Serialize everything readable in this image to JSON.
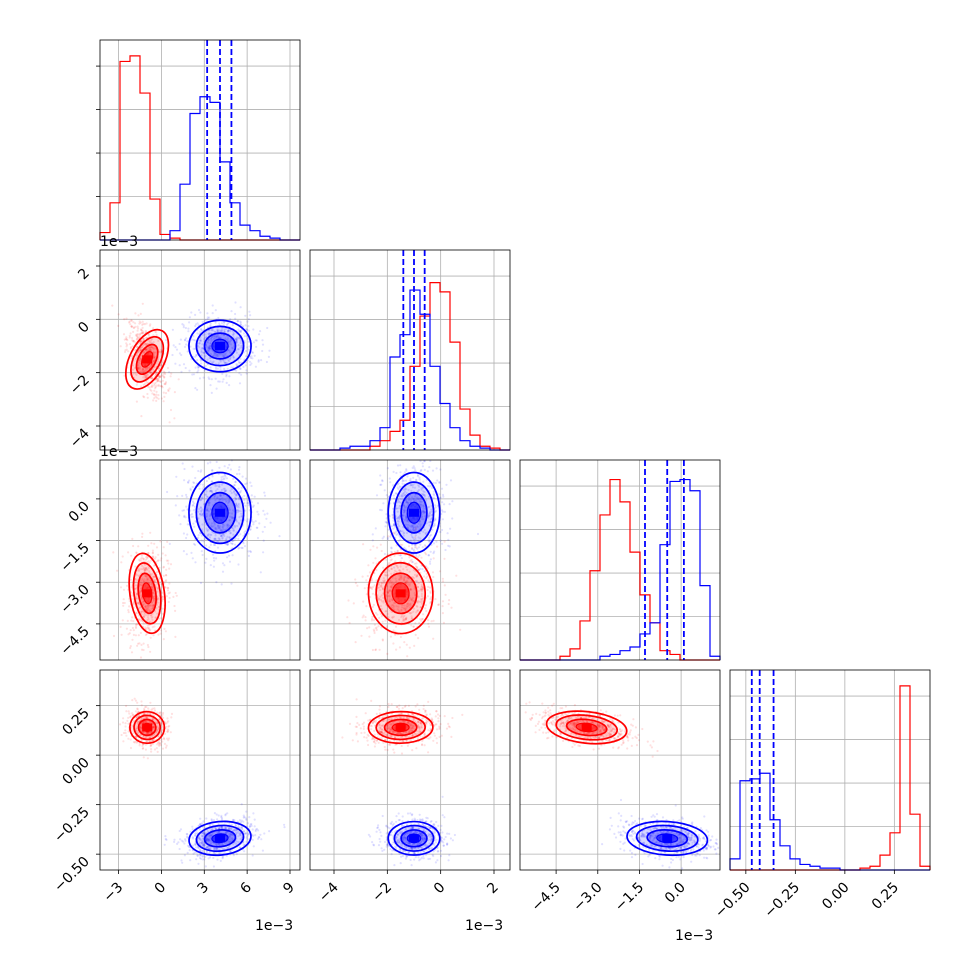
{
  "chart_data": {
    "type": "corner",
    "colors": {
      "series_a": "#ff0000",
      "series_b": "#0000ff",
      "grid": "#b0b0b0"
    },
    "series": [
      {
        "color": "#ff0000",
        "params": [
          {
            "center": -0.001,
            "sd": 0.0005
          },
          {
            "center": -0.0015,
            "sd": 0.0005
          },
          {
            "center": -0.0034,
            "sd": 0.0006
          },
          {
            "center": 0.14,
            "sd": 0.033
          }
        ],
        "hist": [
          [
            0.04,
            0.2,
            0.96,
            0.99,
            0.79,
            0.22,
            0.03,
            0.01,
            0,
            0,
            0,
            0,
            0,
            0,
            0,
            0,
            0,
            0,
            0,
            0
          ],
          [
            0,
            0,
            0,
            0,
            0,
            0,
            0.02,
            0.05,
            0.1,
            0.16,
            0.45,
            0.72,
            0.9,
            0.85,
            0.58,
            0.22,
            0.08,
            0.02,
            0.01,
            0
          ],
          [
            0,
            0,
            0,
            0,
            0.02,
            0.06,
            0.21,
            0.48,
            0.78,
            0.97,
            0.85,
            0.58,
            0.35,
            0.2,
            0.05,
            0.03,
            0,
            0,
            0,
            0
          ],
          [
            0,
            0,
            0,
            0,
            0,
            0,
            0,
            0,
            0,
            0,
            0,
            0,
            0,
            0.01,
            0.02,
            0.08,
            0.2,
            0.99,
            0.3,
            0.02
          ]
        ]
      },
      {
        "color": "#0000ff",
        "params": [
          {
            "center": 0.0041,
            "sd": 0.0009
          },
          {
            "center": -0.001,
            "sd": 0.0004
          },
          {
            "center": -0.0005,
            "sd": 0.0006
          },
          {
            "center": -0.42,
            "sd": 0.035
          }
        ],
        "quantiles": [
          [
            0.0032,
            0.0041,
            0.0049
          ],
          [
            -0.0014,
            -0.001,
            -0.0006
          ],
          [
            -0.0013,
            -0.0005,
            0.0001
          ],
          [
            -0.47,
            -0.43,
            -0.36
          ]
        ],
        "hist": [
          [
            0,
            0,
            0,
            0,
            0,
            0,
            0,
            0.05,
            0.3,
            0.68,
            0.77,
            0.74,
            0.42,
            0.2,
            0.08,
            0.05,
            0.02,
            0.01,
            0,
            0
          ],
          [
            0,
            0,
            0,
            0.01,
            0.02,
            0.02,
            0.05,
            0.12,
            0.5,
            0.62,
            0.86,
            0.73,
            0.45,
            0.25,
            0.12,
            0.05,
            0.02,
            0.01,
            0,
            0
          ],
          [
            0,
            0,
            0,
            0,
            0,
            0,
            0,
            0,
            0.02,
            0.03,
            0.05,
            0.07,
            0.14,
            0.2,
            0.62,
            0.96,
            0.97,
            0.91,
            0.4,
            0.02
          ],
          [
            0.06,
            0.48,
            0.49,
            0.52,
            0.27,
            0.13,
            0.06,
            0.03,
            0.02,
            0.01,
            0.01,
            0,
            0,
            0,
            0,
            0,
            0,
            0,
            0,
            0
          ]
        ]
      }
    ],
    "axes": [
      {
        "range": [
          -0.0043,
          0.0097
        ],
        "ticks": [
          -3,
          0,
          3,
          6,
          9
        ],
        "tick_values": [
          -0.003,
          0,
          0.003,
          0.006,
          0.009
        ],
        "offset": "1e−3"
      },
      {
        "range": [
          -0.0049,
          0.0026
        ],
        "ticks": [
          -4,
          -2,
          0,
          2
        ],
        "tick_values": [
          -0.004,
          -0.002,
          0,
          0.002
        ],
        "offset": "1e−3"
      },
      {
        "range": [
          -0.0058,
          0.0014
        ],
        "ticks": [
          -4.5,
          -3.0,
          -1.5,
          0.0
        ],
        "tick_values": [
          -0.0045,
          -0.003,
          -0.0015,
          0
        ],
        "offset": "1e−3"
      },
      {
        "range": [
          -0.58,
          0.43
        ],
        "ticks": [
          -0.5,
          -0.25,
          0.0,
          0.25
        ],
        "tick_values": [
          -0.5,
          -0.25,
          0,
          0.25
        ],
        "offset": ""
      }
    ],
    "tick_text": {
      "x0": [
        "−3",
        "0",
        "3",
        "6",
        "9"
      ],
      "x1": [
        "−4",
        "−2",
        "0",
        "2"
      ],
      "x2": [
        "−4.5",
        "−3.0",
        "−1.5",
        "0.0"
      ],
      "x3": [
        "−0.50",
        "−0.25",
        "0.00",
        "0.25"
      ],
      "y1": [
        "−4",
        "−2",
        "0",
        "2"
      ],
      "y2": [
        "−4.5",
        "−3.0",
        "−1.5",
        "0.0"
      ],
      "y3": [
        "−0.50",
        "−0.25",
        "0.00",
        "0.25"
      ]
    },
    "offset_text": {
      "y1": "1e−3",
      "y2": "1e−3",
      "x0": "1e−3",
      "x1": "1e−3",
      "x2": "1e−3"
    },
    "grid": true,
    "legend": "none"
  }
}
